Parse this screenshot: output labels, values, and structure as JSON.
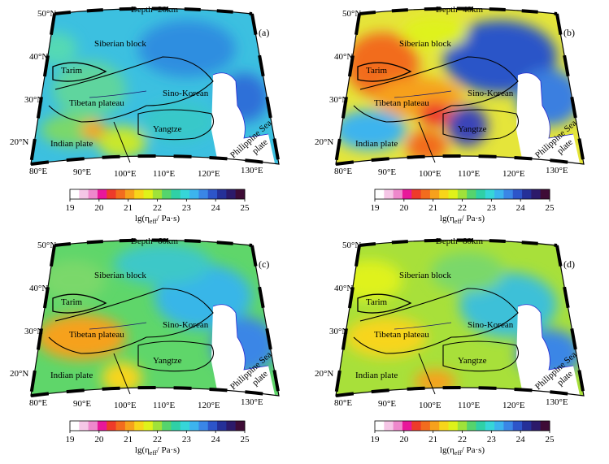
{
  "figure": {
    "panels": [
      {
        "id": "a",
        "label": "(a)",
        "title": "Depth=20km",
        "scheme": "d20"
      },
      {
        "id": "b",
        "label": "(b)",
        "title": "Depth=40km",
        "scheme": "d40"
      },
      {
        "id": "c",
        "label": "(c)",
        "title": "Depth=60km",
        "scheme": "d60"
      },
      {
        "id": "d",
        "label": "(d)",
        "title": "Depth=80km",
        "scheme": "d80"
      }
    ],
    "lat_labels": [
      "50°N",
      "40°N",
      "30°N",
      "20°N"
    ],
    "lon_labels": [
      "80°E",
      "90°E",
      "100°E",
      "110°E",
      "120°E",
      "130°E"
    ],
    "regions": [
      "Siberian block",
      "Tarim",
      "Tibetan plateau",
      "Sino-Korean",
      "Yangtze",
      "Indian plate"
    ],
    "sea_label": [
      "Philippine Sea",
      "plate"
    ],
    "colorbar": {
      "ticks": [
        "19",
        "20",
        "21",
        "22",
        "23",
        "24",
        "25"
      ],
      "label_prefix": "lg(η",
      "label_sub": "eff",
      "label_suffix": "/ Pa·s)",
      "colors": [
        "#ffffff",
        "#f5c6e6",
        "#ee88cc",
        "#e8179a",
        "#ee3b2a",
        "#f26c1e",
        "#f6a11c",
        "#f7d51a",
        "#dff21a",
        "#9fe23a",
        "#55d46d",
        "#2fd0a6",
        "#36d6d8",
        "#3cb4ee",
        "#3a86e6",
        "#2d55c9",
        "#253098",
        "#2c1a6a",
        "#3e0c36"
      ]
    }
  }
}
